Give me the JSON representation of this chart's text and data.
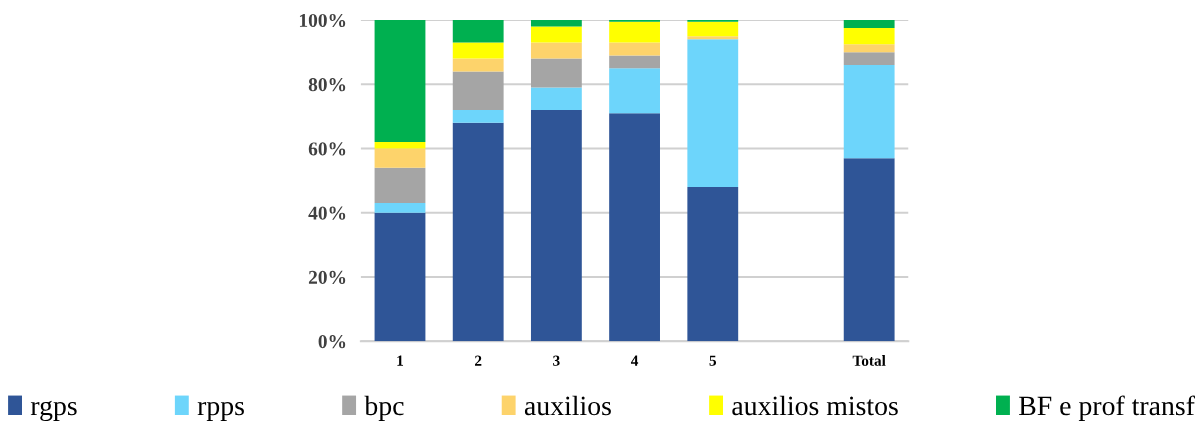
{
  "chart_data": {
    "type": "bar",
    "stacked": true,
    "categories": [
      "1",
      "2",
      "3",
      "4",
      "5",
      null,
      "Total"
    ],
    "series": [
      {
        "name": "rgps",
        "color": "#2f5597",
        "values": [
          40,
          68,
          72,
          71,
          48,
          null,
          57
        ]
      },
      {
        "name": "rpps",
        "color": "#6dd5fb",
        "values": [
          3,
          4,
          7,
          14,
          46,
          null,
          29
        ]
      },
      {
        "name": "bpc",
        "color": "#a5a5a5",
        "values": [
          11,
          12,
          9,
          4,
          0,
          null,
          4
        ]
      },
      {
        "name": "auxilios",
        "color": "#fdd36b",
        "values": [
          6,
          4,
          5,
          4,
          1,
          null,
          2.5
        ]
      },
      {
        "name": "auxilios mistos",
        "color": "#ffff00",
        "values": [
          2,
          5,
          5,
          6.5,
          4.5,
          null,
          5
        ]
      },
      {
        "name": "BF e prof transf",
        "color": "#00b050",
        "values": [
          38,
          7,
          2,
          0.5,
          0.5,
          null,
          2.5
        ]
      }
    ],
    "ylim": [
      0,
      100
    ],
    "yticks": [
      {
        "value": 0,
        "label": "0%"
      },
      {
        "value": 20,
        "label": "20%"
      },
      {
        "value": 40,
        "label": "40%"
      },
      {
        "value": 60,
        "label": "60%"
      },
      {
        "value": 80,
        "label": "80%"
      },
      {
        "value": 100,
        "label": "100%"
      }
    ],
    "grid": "y",
    "legend": "bottom"
  }
}
